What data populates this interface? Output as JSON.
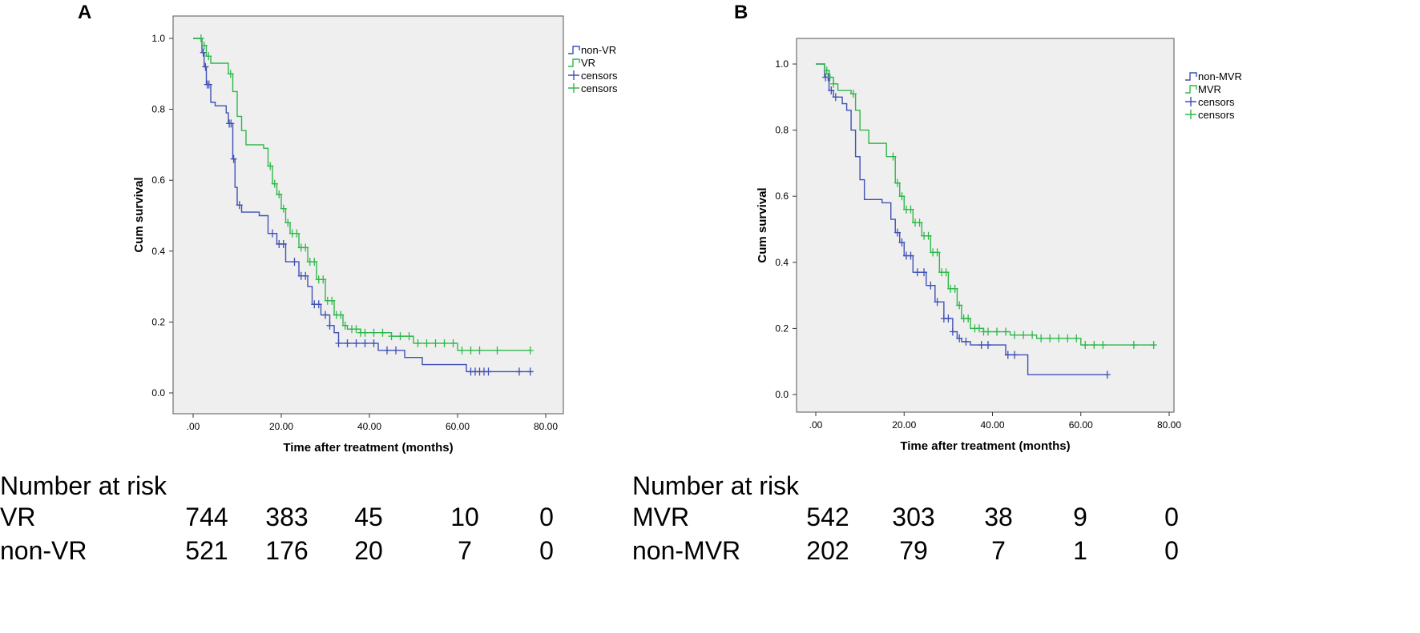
{
  "chart_data": [
    {
      "type": "line",
      "panel": "A",
      "title": "",
      "xlabel": "Time after treatment (months)",
      "ylabel": "Cum survival",
      "xlim": [
        0,
        80
      ],
      "ylim": [
        0,
        1.0
      ],
      "x_ticks": [
        ".00",
        "20.00",
        "40.00",
        "60.00",
        "80.00"
      ],
      "y_ticks": [
        "0.0",
        "0.2",
        "0.4",
        "0.6",
        "0.8",
        "1.0"
      ],
      "grid": false,
      "legend_position": "top-right",
      "legend": [
        {
          "label": "non-VR",
          "kind": "line",
          "color": "#3f51b5"
        },
        {
          "label": "VR",
          "kind": "line",
          "color": "#2fb84a"
        },
        {
          "label": "censors",
          "kind": "censor",
          "color": "#3f51b5"
        },
        {
          "label": "censors",
          "kind": "censor",
          "color": "#2fb84a"
        }
      ],
      "series": [
        {
          "name": "non-VR",
          "color": "#3f51b5",
          "x": [
            0,
            2,
            2.5,
            3,
            4,
            5,
            7.5,
            8,
            9,
            9.5,
            10,
            11,
            15,
            17,
            19,
            21,
            24,
            26,
            27,
            29,
            31,
            32,
            33,
            40,
            42,
            48,
            52,
            62,
            76.5
          ],
          "y": [
            1.0,
            0.96,
            0.92,
            0.87,
            0.82,
            0.81,
            0.79,
            0.76,
            0.66,
            0.58,
            0.53,
            0.51,
            0.5,
            0.45,
            0.42,
            0.37,
            0.33,
            0.3,
            0.25,
            0.22,
            0.19,
            0.17,
            0.14,
            0.14,
            0.12,
            0.1,
            0.08,
            0.06,
            0.06
          ],
          "censors_x": [
            2.3,
            2.8,
            3.2,
            3.6,
            8.2,
            8.6,
            9.2,
            10.5,
            18,
            19.5,
            20.5,
            23,
            24.5,
            25.5,
            27.5,
            28.5,
            30,
            31,
            33,
            35,
            37,
            39,
            41,
            44,
            46,
            63,
            64,
            65,
            66,
            67,
            74,
            76.5
          ]
        },
        {
          "name": "VR",
          "color": "#2fb84a",
          "x": [
            0,
            2,
            3,
            4,
            8,
            9,
            10,
            11,
            12,
            16,
            17,
            18,
            19,
            20,
            21,
            22,
            24,
            26,
            28,
            30,
            32,
            34,
            35,
            38,
            45,
            50,
            60,
            76.5
          ],
          "y": [
            1.0,
            0.98,
            0.95,
            0.93,
            0.9,
            0.85,
            0.78,
            0.74,
            0.7,
            0.69,
            0.64,
            0.59,
            0.56,
            0.52,
            0.48,
            0.45,
            0.41,
            0.37,
            0.32,
            0.26,
            0.22,
            0.19,
            0.18,
            0.17,
            0.16,
            0.14,
            0.12,
            0.12
          ],
          "censors_x": [
            1.8,
            2.5,
            3.5,
            8.5,
            17.5,
            18.5,
            19.5,
            20.5,
            21.5,
            22.5,
            23.5,
            24.5,
            25.5,
            26.5,
            27.5,
            28.5,
            29.5,
            30.5,
            31.5,
            32.5,
            33.5,
            34.5,
            36,
            37,
            38,
            39,
            41,
            43,
            45,
            47,
            49,
            51,
            53,
            55,
            57,
            59,
            61,
            63,
            65,
            69,
            76.5
          ]
        }
      ],
      "risk_table": {
        "title": "Number at risk",
        "timepoints": [
          0,
          20,
          40,
          60,
          80
        ],
        "rows": [
          {
            "label": "VR",
            "values": [
              "744",
              "383",
              "45",
              "10",
              "0"
            ]
          },
          {
            "label": "non-VR",
            "values": [
              "521",
              "176",
              "20",
              "7",
              "0"
            ]
          }
        ]
      }
    },
    {
      "type": "line",
      "panel": "B",
      "title": "",
      "xlabel": "Time after treatment (months)",
      "ylabel": "Cum survival",
      "xlim": [
        0,
        80
      ],
      "ylim": [
        0,
        1.0
      ],
      "x_ticks": [
        ".00",
        "20.00",
        "40.00",
        "60.00",
        "80.00"
      ],
      "y_ticks": [
        "0.0",
        "0.2",
        "0.4",
        "0.6",
        "0.8",
        "1.0"
      ],
      "grid": false,
      "legend_position": "top-right",
      "legend": [
        {
          "label": "non-MVR",
          "kind": "line",
          "color": "#3f51b5"
        },
        {
          "label": "MVR",
          "kind": "line",
          "color": "#2fb84a"
        },
        {
          "label": "censors",
          "kind": "censor",
          "color": "#3f51b5"
        },
        {
          "label": "censors",
          "kind": "censor",
          "color": "#2fb84a"
        }
      ],
      "series": [
        {
          "name": "non-MVR",
          "color": "#3f51b5",
          "x": [
            0,
            2,
            3,
            4,
            6,
            7,
            8,
            9,
            10,
            11,
            15,
            17,
            18,
            19,
            20,
            22,
            25,
            27,
            29,
            31,
            32,
            33,
            35,
            43,
            48,
            66
          ],
          "y": [
            1.0,
            0.96,
            0.92,
            0.9,
            0.88,
            0.86,
            0.8,
            0.72,
            0.65,
            0.59,
            0.58,
            0.53,
            0.49,
            0.46,
            0.42,
            0.37,
            0.33,
            0.28,
            0.23,
            0.19,
            0.17,
            0.16,
            0.15,
            0.12,
            0.06,
            0.06
          ],
          "censors_x": [
            2.2,
            2.8,
            3.5,
            4.5,
            18.5,
            19.5,
            20.5,
            21.5,
            23,
            24.5,
            26,
            27.5,
            29,
            30,
            31,
            32.5,
            34,
            37.5,
            39,
            43.5,
            45,
            66
          ]
        },
        {
          "name": "MVR",
          "color": "#2fb84a",
          "x": [
            0,
            2,
            3,
            4,
            5,
            8,
            9,
            10,
            12,
            16,
            18,
            19,
            20,
            22,
            24,
            26,
            28,
            30,
            32,
            33,
            35,
            38,
            44,
            50,
            60,
            76.5
          ],
          "y": [
            1.0,
            0.98,
            0.96,
            0.94,
            0.92,
            0.91,
            0.86,
            0.8,
            0.76,
            0.72,
            0.64,
            0.6,
            0.56,
            0.52,
            0.48,
            0.43,
            0.37,
            0.32,
            0.27,
            0.23,
            0.2,
            0.19,
            0.18,
            0.17,
            0.15,
            0.15
          ],
          "censors_x": [
            2.5,
            3.2,
            4,
            8.5,
            17.5,
            18.5,
            19.5,
            20.5,
            21.5,
            22.5,
            23.5,
            24.5,
            25.5,
            26.5,
            27.5,
            28.5,
            29.5,
            30.5,
            31.5,
            32.5,
            33.5,
            34.5,
            36,
            37,
            38,
            39,
            41,
            43,
            45,
            47,
            49,
            51,
            53,
            55,
            57,
            59,
            61,
            63,
            65,
            72,
            76.5
          ]
        }
      ],
      "risk_table": {
        "title": "Number at risk",
        "timepoints": [
          0,
          20,
          40,
          60,
          80
        ],
        "rows": [
          {
            "label": "MVR",
            "values": [
              "542",
              "303",
              "38",
              "9",
              "0"
            ]
          },
          {
            "label": "non-MVR",
            "values": [
              "202",
              "79",
              "7",
              "1",
              "0"
            ]
          }
        ]
      }
    }
  ],
  "panels": [
    {
      "label": "A"
    },
    {
      "label": "B"
    }
  ]
}
